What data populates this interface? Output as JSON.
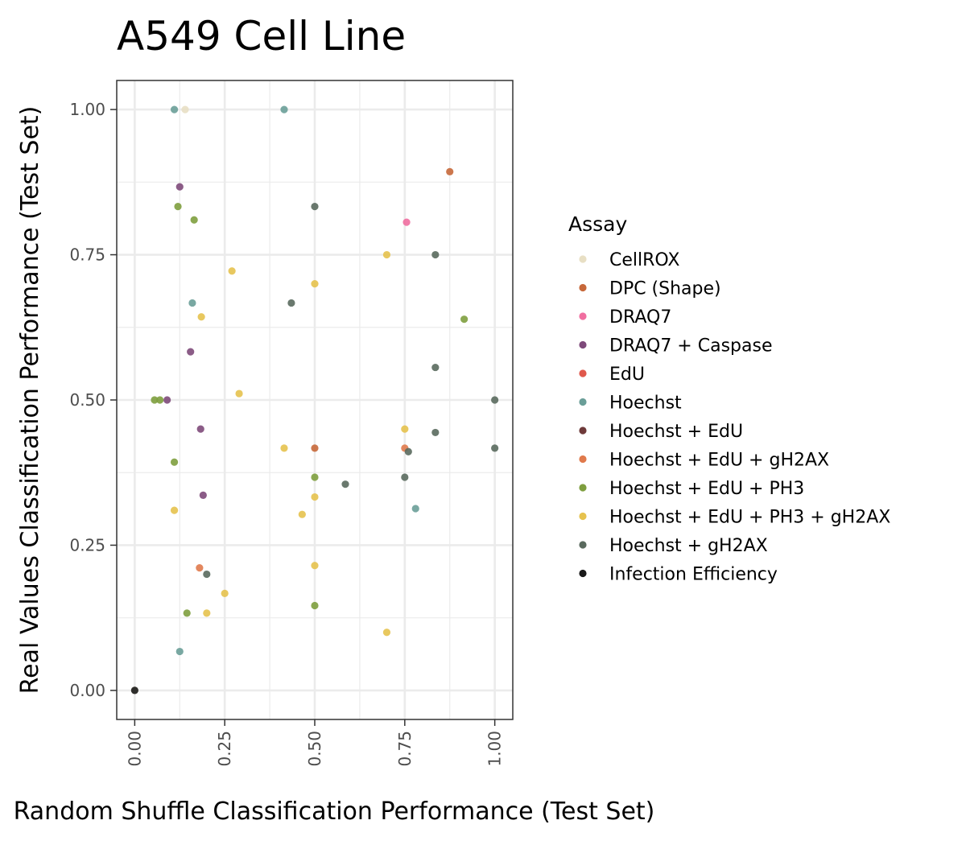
{
  "chart_data": {
    "type": "scatter",
    "title": "A549 Cell Line",
    "xlabel": "Random Shuffle Classification Performance (Test Set)",
    "ylabel": "Real Values Classification Performance (Test Set)",
    "xlim": [
      -0.05,
      1.05
    ],
    "ylim": [
      -0.05,
      1.05
    ],
    "xticks": [
      0,
      0.25,
      0.5,
      0.75,
      1
    ],
    "yticks": [
      0,
      0.25,
      0.5,
      0.75,
      1
    ],
    "xtick_labels": [
      "0.00",
      "0.25",
      "0.50",
      "0.75",
      "1.00"
    ],
    "ytick_labels": [
      "0.00",
      "0.25",
      "0.50",
      "0.75",
      "1.00"
    ],
    "grid": true,
    "legend_title": "Assay",
    "legend_position": "right",
    "series": [
      {
        "name": "CellROX",
        "color": "#e8dfc4",
        "points": [
          [
            0.14,
            1.0
          ],
          [
            0.0,
            0.0
          ]
        ]
      },
      {
        "name": "DPC (Shape)",
        "color": "#c7683a",
        "points": [
          [
            0.875,
            0.893
          ],
          [
            0.5,
            0.417
          ]
        ]
      },
      {
        "name": "DRAQ7",
        "color": "#f06ea0",
        "points": [
          [
            0.755,
            0.806
          ]
        ]
      },
      {
        "name": "DRAQ7 + Caspase",
        "color": "#7e4a7a",
        "points": [
          [
            0.125,
            0.867
          ],
          [
            0.155,
            0.583
          ],
          [
            0.09,
            0.5
          ],
          [
            0.183,
            0.45
          ],
          [
            0.19,
            0.336
          ]
        ]
      },
      {
        "name": "EdU",
        "color": "#e0584c",
        "points": []
      },
      {
        "name": "Hoechst",
        "color": "#6a9e98",
        "points": [
          [
            0.11,
            1.0
          ],
          [
            0.415,
            1.0
          ],
          [
            0.16,
            0.667
          ],
          [
            0.78,
            0.313
          ],
          [
            0.125,
            0.067
          ]
        ]
      },
      {
        "name": "Hoechst + EdU",
        "color": "#6e3a3a",
        "points": []
      },
      {
        "name": "Hoechst + EdU + gH2AX",
        "color": "#e07a4c",
        "points": [
          [
            0.18,
            0.211
          ],
          [
            0.75,
            0.417
          ]
        ]
      },
      {
        "name": "Hoechst + EdU + PH3",
        "color": "#7e9e3e",
        "points": [
          [
            0.12,
            0.833
          ],
          [
            0.165,
            0.81
          ],
          [
            0.915,
            0.639
          ],
          [
            0.055,
            0.5
          ],
          [
            0.07,
            0.5
          ],
          [
            0.11,
            0.393
          ],
          [
            0.5,
            0.367
          ],
          [
            0.145,
            0.133
          ],
          [
            0.5,
            0.146
          ]
        ]
      },
      {
        "name": "Hoechst + EdU + PH3 + gH2AX",
        "color": "#e6c24e",
        "points": [
          [
            0.27,
            0.722
          ],
          [
            0.7,
            0.75
          ],
          [
            0.5,
            0.7
          ],
          [
            0.185,
            0.643
          ],
          [
            0.29,
            0.511
          ],
          [
            0.75,
            0.45
          ],
          [
            0.415,
            0.417
          ],
          [
            0.11,
            0.31
          ],
          [
            0.465,
            0.303
          ],
          [
            0.5,
            0.333
          ],
          [
            0.5,
            0.215
          ],
          [
            0.25,
            0.167
          ],
          [
            0.2,
            0.133
          ],
          [
            0.7,
            0.1
          ]
        ]
      },
      {
        "name": "Hoechst + gH2AX",
        "color": "#5a6a5e",
        "points": [
          [
            0.5,
            0.833
          ],
          [
            0.835,
            0.75
          ],
          [
            0.435,
            0.667
          ],
          [
            0.835,
            0.556
          ],
          [
            1.0,
            0.5
          ],
          [
            0.835,
            0.444
          ],
          [
            1.0,
            0.417
          ],
          [
            0.76,
            0.411
          ],
          [
            0.75,
            0.367
          ],
          [
            0.585,
            0.355
          ],
          [
            0.2,
            0.2
          ]
        ]
      },
      {
        "name": "Infection Efficiency",
        "color": "#1a1a1a",
        "points": [
          [
            0.0,
            0.0
          ]
        ]
      }
    ]
  }
}
